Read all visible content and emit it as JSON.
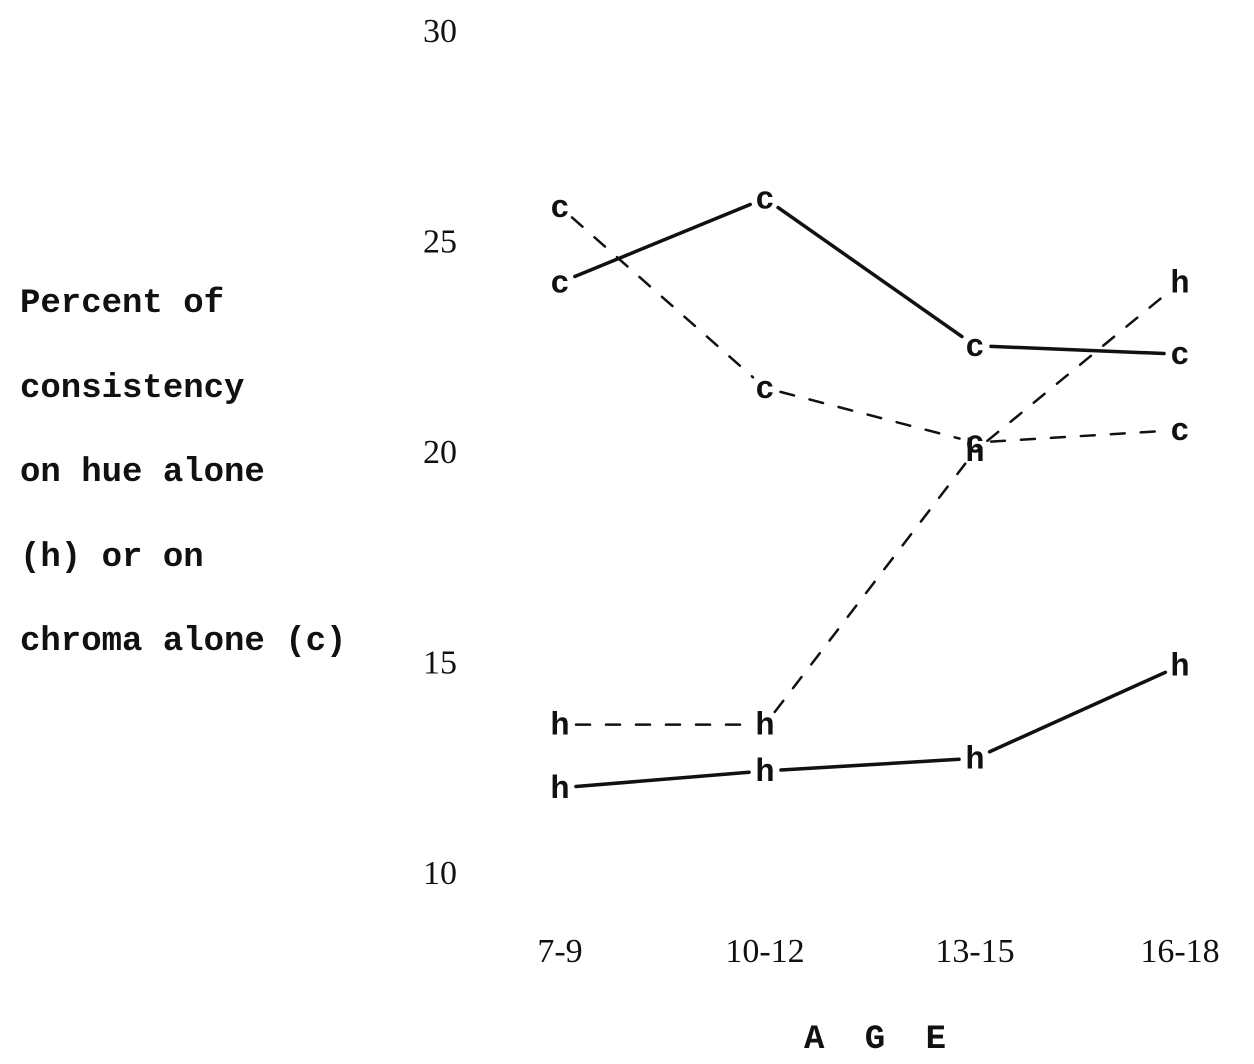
{
  "chart_data": {
    "type": "line",
    "title": "",
    "xlabel": "A G E",
    "ylabel_lines": [
      "Percent of",
      "consistency",
      "on hue alone",
      "(h) or on",
      "chroma alone (c)"
    ],
    "categories": [
      "7-9",
      "10-12",
      "13-15",
      "16-18"
    ],
    "yticks": [
      "30",
      "25",
      "20",
      "15",
      "10"
    ],
    "ylim": [
      10,
      30
    ],
    "grid": false,
    "legend": "none",
    "series": [
      {
        "marker": "c",
        "style": "solid",
        "values": [
          24.0,
          26.0,
          22.5,
          22.3
        ]
      },
      {
        "marker": "c",
        "style": "dashed",
        "values": [
          25.8,
          21.5,
          20.2,
          20.5
        ]
      },
      {
        "marker": "h",
        "style": "dashed",
        "values": [
          13.5,
          13.5,
          20.0,
          24.0
        ]
      },
      {
        "marker": "h",
        "style": "solid",
        "values": [
          12.0,
          12.4,
          12.7,
          14.9
        ]
      }
    ]
  }
}
